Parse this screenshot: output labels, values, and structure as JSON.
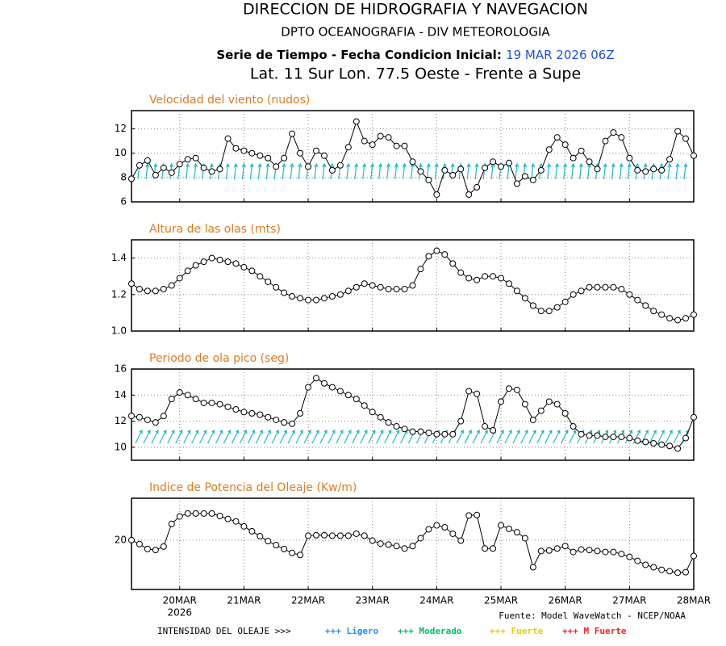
{
  "header": {
    "title": "DIRECCION DE HIDROGRAFIA Y NAVEGACION",
    "subtitle": "DPTO OCEANOGRAFIA - DIV METEOROLOGIA",
    "run_label": "Serie de Tiempo - Fecha Condicion Inicial:",
    "run_date": "19 MAR 2026 06Z",
    "location": "Lat. 11 Sur  Lon. 77.5 Oeste - Frente a Supe"
  },
  "chart_data": [
    {
      "type": "line",
      "title": "Velocidad del viento (nudos)",
      "xlim": [
        19.25,
        28
      ],
      "xticks": [
        20,
        21,
        22,
        23,
        24,
        25,
        26,
        27,
        28
      ],
      "ylim": [
        6,
        13.5
      ],
      "yticks": [
        6,
        8,
        10,
        12
      ],
      "grid": true,
      "x": [
        19.25,
        19.375,
        19.5,
        19.625,
        19.75,
        19.875,
        20,
        20.125,
        20.25,
        20.375,
        20.5,
        20.625,
        20.75,
        20.875,
        21,
        21.125,
        21.25,
        21.375,
        21.5,
        21.625,
        21.75,
        21.875,
        22,
        22.125,
        22.25,
        22.375,
        22.5,
        22.625,
        22.75,
        22.875,
        23,
        23.125,
        23.25,
        23.375,
        23.5,
        23.625,
        23.75,
        23.875,
        24,
        24.125,
        24.25,
        24.375,
        24.5,
        24.625,
        24.75,
        24.875,
        25,
        25.125,
        25.25,
        25.375,
        25.5,
        25.625,
        25.75,
        25.875,
        26,
        26.125,
        26.25,
        26.375,
        26.5,
        26.625,
        26.75,
        26.875,
        27,
        27.125,
        27.25,
        27.375,
        27.5,
        27.625,
        27.75,
        27.875,
        28
      ],
      "series": [
        {
          "color": "#000000",
          "values": [
            7.9,
            9.0,
            9.4,
            8.2,
            8.8,
            8.4,
            9.1,
            9.5,
            9.6,
            8.8,
            8.5,
            8.7,
            11.2,
            10.4,
            10.2,
            10.0,
            9.8,
            9.6,
            8.9,
            9.6,
            11.6,
            10.0,
            8.9,
            10.2,
            9.8,
            8.6,
            9.0,
            10.5,
            12.6,
            11.0,
            10.7,
            11.4,
            11.3,
            10.6,
            10.6,
            9.3,
            8.5,
            7.8,
            6.6,
            8.6,
            8.2,
            8.7,
            6.6,
            7.2,
            8.8,
            9.3,
            8.9,
            9.2,
            7.5,
            8.1,
            7.8,
            8.6,
            10.3,
            11.3,
            10.7,
            9.6,
            10.2,
            9.3,
            8.7,
            11.0,
            11.7,
            11.3,
            9.6,
            8.6,
            8.5,
            8.7,
            8.6,
            9.5,
            11.8,
            11.2,
            9.8
          ]
        }
      ]
    },
    {
      "type": "line",
      "title": "Altura de las olas (mts)",
      "xlim": [
        19.25,
        28
      ],
      "xticks": [
        20,
        21,
        22,
        23,
        24,
        25,
        26,
        27,
        28
      ],
      "ylim": [
        1.0,
        1.5
      ],
      "yticks": [
        {
          "value": 1.0,
          "label": "1.0"
        },
        1.2,
        1.4
      ],
      "grid": true,
      "x": [
        19.25,
        19.375,
        19.5,
        19.625,
        19.75,
        19.875,
        20,
        20.125,
        20.25,
        20.375,
        20.5,
        20.625,
        20.75,
        20.875,
        21,
        21.125,
        21.25,
        21.375,
        21.5,
        21.625,
        21.75,
        21.875,
        22,
        22.125,
        22.25,
        22.375,
        22.5,
        22.625,
        22.75,
        22.875,
        23,
        23.125,
        23.25,
        23.375,
        23.5,
        23.625,
        23.75,
        23.875,
        24,
        24.125,
        24.25,
        24.375,
        24.5,
        24.625,
        24.75,
        24.875,
        25,
        25.125,
        25.25,
        25.375,
        25.5,
        25.625,
        25.75,
        25.875,
        26,
        26.125,
        26.25,
        26.375,
        26.5,
        26.625,
        26.75,
        26.875,
        27,
        27.125,
        27.25,
        27.375,
        27.5,
        27.625,
        27.75,
        27.875,
        28
      ],
      "series": [
        {
          "color": "#000000",
          "values": [
            1.26,
            1.23,
            1.22,
            1.22,
            1.23,
            1.25,
            1.29,
            1.33,
            1.36,
            1.38,
            1.4,
            1.39,
            1.38,
            1.37,
            1.35,
            1.33,
            1.3,
            1.27,
            1.24,
            1.21,
            1.19,
            1.18,
            1.17,
            1.17,
            1.18,
            1.19,
            1.2,
            1.22,
            1.24,
            1.26,
            1.25,
            1.24,
            1.23,
            1.23,
            1.23,
            1.25,
            1.34,
            1.41,
            1.44,
            1.42,
            1.37,
            1.32,
            1.29,
            1.28,
            1.3,
            1.3,
            1.29,
            1.26,
            1.22,
            1.18,
            1.14,
            1.11,
            1.11,
            1.13,
            1.16,
            1.2,
            1.22,
            1.24,
            1.24,
            1.24,
            1.24,
            1.23,
            1.2,
            1.17,
            1.14,
            1.11,
            1.09,
            1.07,
            1.06,
            1.07,
            1.09
          ]
        }
      ]
    },
    {
      "type": "line",
      "title": "Periodo de ola pico (seg)",
      "xlim": [
        19.25,
        28
      ],
      "xticks": [
        20,
        21,
        22,
        23,
        24,
        25,
        26,
        27,
        28
      ],
      "ylim": [
        9,
        16
      ],
      "yticks": [
        10,
        12,
        14,
        16
      ],
      "grid": true,
      "x": [
        19.25,
        19.375,
        19.5,
        19.625,
        19.75,
        19.875,
        20,
        20.125,
        20.25,
        20.375,
        20.5,
        20.625,
        20.75,
        20.875,
        21,
        21.125,
        21.25,
        21.375,
        21.5,
        21.625,
        21.75,
        21.875,
        22,
        22.125,
        22.25,
        22.375,
        22.5,
        22.625,
        22.75,
        22.875,
        23,
        23.125,
        23.25,
        23.375,
        23.5,
        23.625,
        23.75,
        23.875,
        24,
        24.125,
        24.25,
        24.375,
        24.5,
        24.625,
        24.75,
        24.875,
        25,
        25.125,
        25.25,
        25.375,
        25.5,
        25.625,
        25.75,
        25.875,
        26,
        26.125,
        26.25,
        26.375,
        26.5,
        26.625,
        26.75,
        26.875,
        27,
        27.125,
        27.25,
        27.375,
        27.5,
        27.625,
        27.75,
        27.875,
        28
      ],
      "series": [
        {
          "color": "#000000",
          "values": [
            12.4,
            12.3,
            12.1,
            11.9,
            12.4,
            13.7,
            14.2,
            14.0,
            13.7,
            13.4,
            13.4,
            13.3,
            13.1,
            12.9,
            12.7,
            12.6,
            12.5,
            12.3,
            12.1,
            11.9,
            11.8,
            12.6,
            14.6,
            15.3,
            14.9,
            14.6,
            14.3,
            14.0,
            13.7,
            13.2,
            12.7,
            12.3,
            11.9,
            11.6,
            11.4,
            11.2,
            11.2,
            11.1,
            11.0,
            11.0,
            11.0,
            12.0,
            14.3,
            14.1,
            11.6,
            11.3,
            13.5,
            14.5,
            14.4,
            13.3,
            12.1,
            12.8,
            13.5,
            13.3,
            12.6,
            11.6,
            11.0,
            10.9,
            10.9,
            10.8,
            10.8,
            10.8,
            10.7,
            10.5,
            10.4,
            10.3,
            10.2,
            10.1,
            9.9,
            10.7,
            12.3
          ]
        }
      ]
    },
    {
      "type": "line",
      "title": "Indice de Potencia del Oleaje (Kw/m)",
      "xlim": [
        19.25,
        28
      ],
      "xticks": [
        {
          "value": 20,
          "label": "20MAR"
        },
        {
          "value": 21,
          "label": "21MAR"
        },
        {
          "value": 22,
          "label": "22MAR"
        },
        {
          "value": 23,
          "label": "23MAR"
        },
        {
          "value": 24,
          "label": "24MAR"
        },
        {
          "value": 25,
          "label": "25MAR"
        },
        {
          "value": 26,
          "label": "26MAR"
        },
        {
          "value": 27,
          "label": "27MAR"
        },
        {
          "value": 28,
          "label": "28MAR"
        }
      ],
      "x_sublabel": "2026",
      "ylim": [
        10,
        28.5
      ],
      "yticks": [
        20
      ],
      "grid": true,
      "x": [
        19.25,
        19.375,
        19.5,
        19.625,
        19.75,
        19.875,
        20,
        20.125,
        20.25,
        20.375,
        20.5,
        20.625,
        20.75,
        20.875,
        21,
        21.125,
        21.25,
        21.375,
        21.5,
        21.625,
        21.75,
        21.875,
        22,
        22.125,
        22.25,
        22.375,
        22.5,
        22.625,
        22.75,
        22.875,
        23,
        23.125,
        23.25,
        23.375,
        23.5,
        23.625,
        23.75,
        23.875,
        24,
        24.125,
        24.25,
        24.375,
        24.5,
        24.625,
        24.75,
        24.875,
        25,
        25.125,
        25.25,
        25.375,
        25.5,
        25.625,
        25.75,
        25.875,
        26,
        26.125,
        26.25,
        26.375,
        26.5,
        26.625,
        26.75,
        26.875,
        27,
        27.125,
        27.25,
        27.375,
        27.5,
        27.625,
        27.75,
        27.875,
        28
      ],
      "series": [
        {
          "color": "#000000",
          "values": [
            20.0,
            19.2,
            18.2,
            18.0,
            18.7,
            23.3,
            24.8,
            25.4,
            25.4,
            25.4,
            25.4,
            24.9,
            24.3,
            23.8,
            22.8,
            21.8,
            20.8,
            19.8,
            19.0,
            18.2,
            17.4,
            17.0,
            20.9,
            21.0,
            21.0,
            20.9,
            20.9,
            20.9,
            21.3,
            20.9,
            19.9,
            19.3,
            19.1,
            18.8,
            18.3,
            18.8,
            20.4,
            22.2,
            23.0,
            22.6,
            21.3,
            19.9,
            25.0,
            25.1,
            18.3,
            18.3,
            23.0,
            22.3,
            21.6,
            20.4,
            14.5,
            17.8,
            17.9,
            18.3,
            18.8,
            17.6,
            18.1,
            18.0,
            17.8,
            17.6,
            17.6,
            17.2,
            16.6,
            15.8,
            15.0,
            14.5,
            14.0,
            13.7,
            13.4,
            13.5,
            16.8
          ]
        }
      ]
    }
  ],
  "footer": {
    "source": "Fuente: Model WaveWatch - NCEP/NOAA",
    "legend_title": "INTENSIDAD DEL OLEAJE >>>",
    "legend": [
      {
        "label": "+++ Ligero",
        "color": "#1e90ff"
      },
      {
        "label": "+++ Moderado",
        "color": "#00c060"
      },
      {
        "label": "+++ Fuerte",
        "color": "#e8d000"
      },
      {
        "label": "+++ M Fuerte",
        "color": "#ff2020"
      }
    ]
  }
}
